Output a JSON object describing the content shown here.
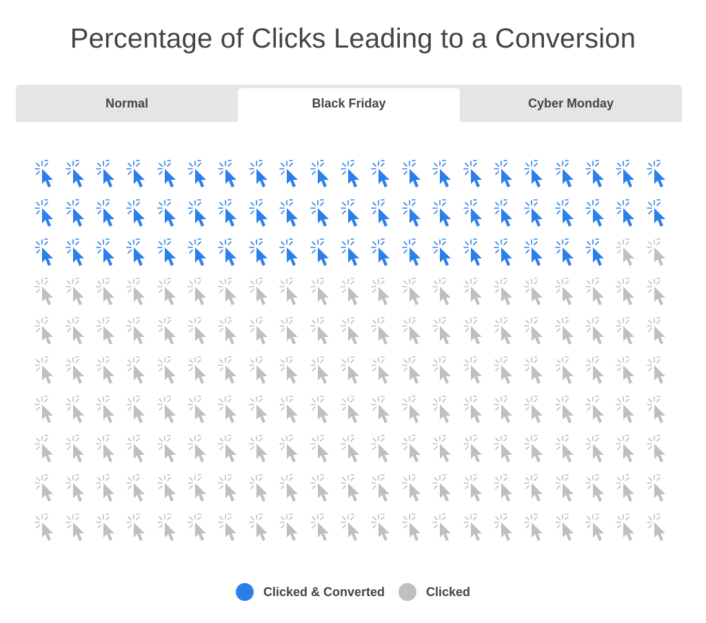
{
  "title": "Percentage of Clicks Leading to a Conversion",
  "tabs": [
    {
      "label": "Normal",
      "active": false
    },
    {
      "label": "Black Friday",
      "active": true
    },
    {
      "label": "Cyber Monday",
      "active": false
    }
  ],
  "legend": [
    {
      "label": "Clicked & Converted",
      "color": "#2b7fea"
    },
    {
      "label": "Clicked",
      "color": "#bdbfc3"
    }
  ],
  "icon_name": "click-cursor-icon",
  "chart_data": {
    "type": "pictograph",
    "title": "Percentage of Clicks Leading to a Conversion",
    "selected_tab": "Black Friday",
    "columns": 21,
    "rows": 10,
    "total_icons": 210,
    "series": [
      {
        "name": "Clicked & Converted",
        "count": 61,
        "color": "#2b7fea"
      },
      {
        "name": "Clicked",
        "count": 149,
        "color": "#bdbfc3"
      }
    ]
  }
}
